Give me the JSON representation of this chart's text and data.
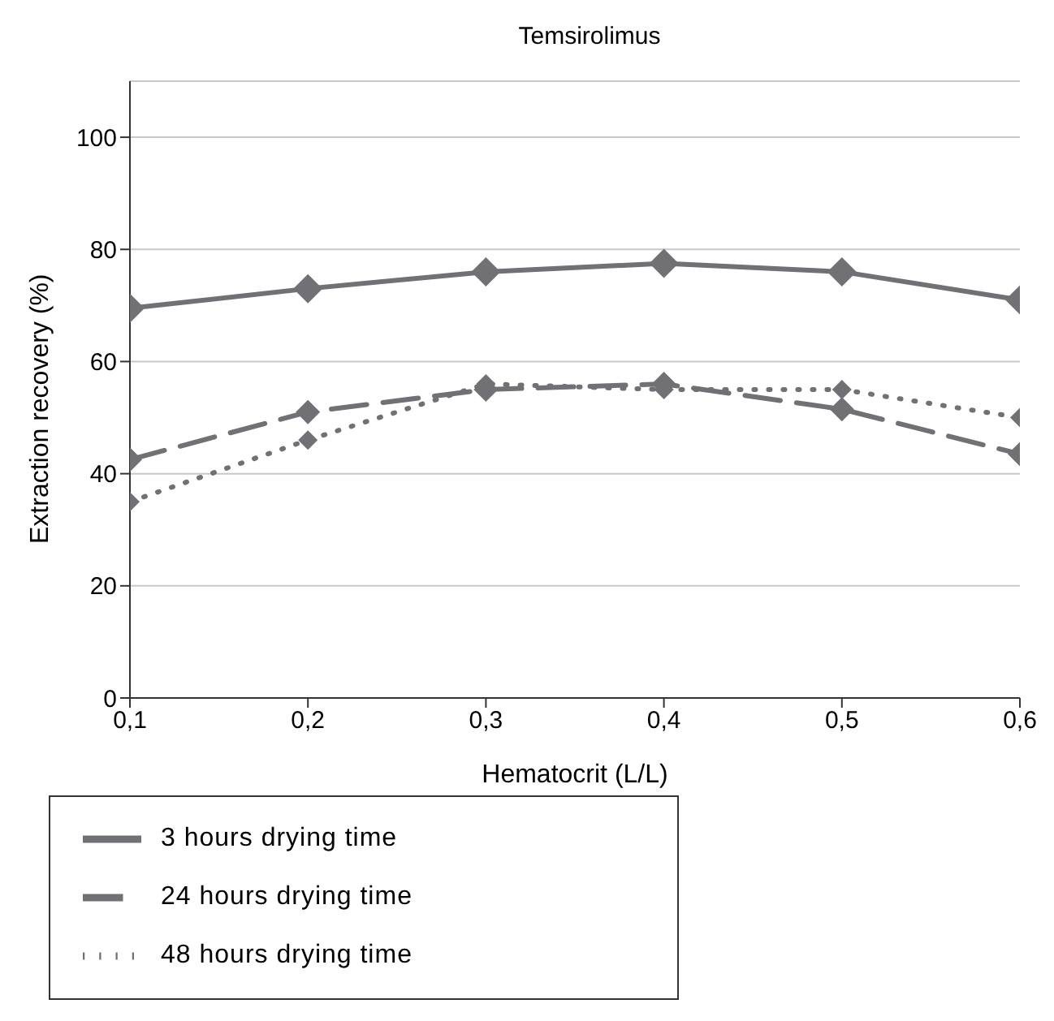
{
  "chart_data": {
    "type": "line",
    "title": "Temsirolimus",
    "xlabel": "Hematocrit (L/L)",
    "ylabel": "Extraction recovery (%)",
    "x": [
      0.1,
      0.2,
      0.3,
      0.4,
      0.5,
      0.6
    ],
    "series": [
      {
        "name": "3 hours drying time",
        "color": "#707075",
        "line_style": "solid",
        "values": [
          69.5,
          73,
          76,
          77.5,
          76,
          71
        ]
      },
      {
        "name": "24 hours drying time",
        "color": "#707075",
        "line_style": "dashed",
        "values": [
          42.5,
          51,
          55,
          56,
          51.5,
          43.5
        ]
      },
      {
        "name": "48 hours drying time",
        "color": "#707075",
        "line_style": "dotted",
        "values": [
          35,
          46,
          56,
          55,
          55,
          50
        ]
      }
    ],
    "xlim": [
      0.1,
      0.6
    ],
    "xticks": [
      {
        "value": 0.1,
        "label": "0,1"
      },
      {
        "value": 0.2,
        "label": "0,2"
      },
      {
        "value": 0.3,
        "label": "0,3"
      },
      {
        "value": 0.4,
        "label": "0,4"
      },
      {
        "value": 0.5,
        "label": "0,5"
      },
      {
        "value": 0.6,
        "label": "0,6"
      }
    ],
    "ylim": [
      0,
      110
    ],
    "yticks": [
      0,
      20,
      40,
      60,
      80,
      100
    ],
    "grid": "y",
    "legend": "bottom",
    "marker": "diamond"
  }
}
